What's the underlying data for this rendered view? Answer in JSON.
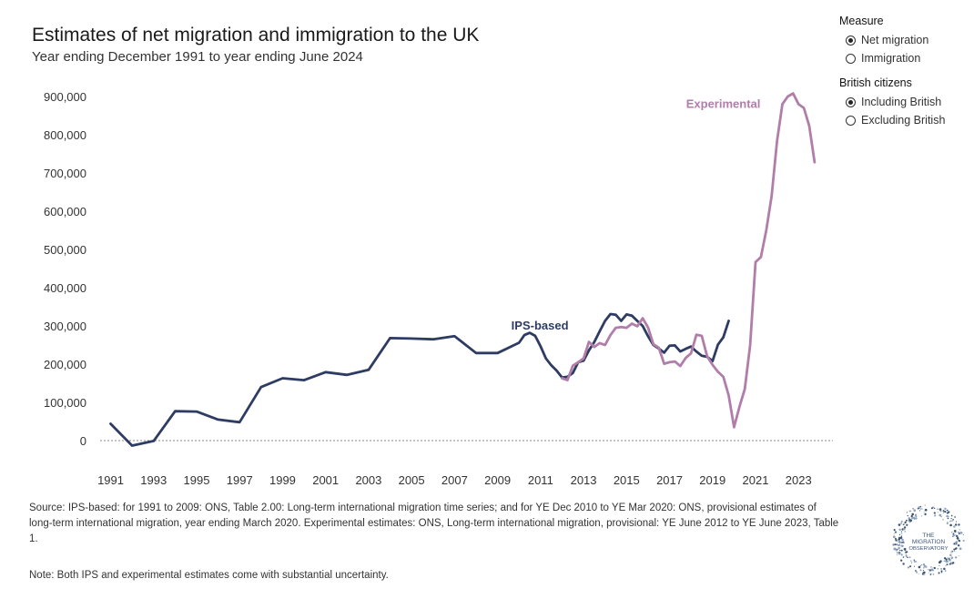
{
  "header": {
    "title": "Estimates of net migration and immigration to the UK",
    "subtitle": "Year ending December 1991 to year ending June 2024"
  },
  "controls": {
    "measure": {
      "title": "Measure",
      "options": [
        {
          "label": "Net migration",
          "selected": true
        },
        {
          "label": "Immigration",
          "selected": false
        }
      ]
    },
    "british": {
      "title": "British citizens",
      "options": [
        {
          "label": "Including British",
          "selected": true
        },
        {
          "label": "Excluding British",
          "selected": false
        }
      ]
    }
  },
  "footer": {
    "source": "Source: IPS-based: for 1991 to 2009: ONS, Table 2.00: Long-term international migration time series; and for YE Dec 2010 to YE Mar 2020: ONS, provisional estimates of long-term international migration, year ending March 2020. Experimental estimates: ONS, Long-term international migration, provisional: YE June 2012 to YE June 2023, Table 1.",
    "note": "Note: Both IPS and experimental estimates come with substantial uncertainty.",
    "logo_text": "THE MIGRATION OBSERVATORY"
  },
  "colors": {
    "ips": "#2e3c63",
    "experimental": "#b07ea9",
    "zero_line": "#888888"
  },
  "chart_data": {
    "type": "line",
    "title": "Estimates of net migration and immigration to the UK",
    "xlabel": "",
    "ylabel": "",
    "xlim": [
      1990.3,
      2024.6
    ],
    "ylim": [
      -20000,
      920000
    ],
    "yticks": [
      0,
      100000,
      200000,
      300000,
      400000,
      500000,
      600000,
      700000,
      800000,
      900000
    ],
    "ytick_labels": [
      "0",
      "100,000",
      "200,000",
      "300,000",
      "400,000",
      "500,000",
      "600,000",
      "700,000",
      "800,000",
      "900,000"
    ],
    "xticks": [
      1991,
      1993,
      1995,
      1997,
      1999,
      2001,
      2003,
      2005,
      2007,
      2009,
      2011,
      2013,
      2015,
      2017,
      2019,
      2021,
      2023
    ],
    "xtick_labels": [
      "1991",
      "1993",
      "1995",
      "1997",
      "1999",
      "2001",
      "2003",
      "2005",
      "2007",
      "2009",
      "2011",
      "2013",
      "2015",
      "2017",
      "2019",
      "2021",
      "2023"
    ],
    "series": [
      {
        "name": "IPS-based",
        "label": "IPS-based",
        "x": [
          1991,
          1992,
          1993,
          1994,
          1995,
          1996,
          1997,
          1998,
          1999,
          2000,
          2001,
          2002,
          2003,
          2004,
          2005,
          2006,
          2007,
          2008,
          2009,
          2010,
          2010.25,
          2010.5,
          2010.75,
          2011,
          2011.25,
          2011.5,
          2011.75,
          2012,
          2012.25,
          2012.5,
          2012.75,
          2013,
          2013.25,
          2013.5,
          2013.75,
          2014,
          2014.25,
          2014.5,
          2014.75,
          2015,
          2015.25,
          2015.5,
          2015.75,
          2016,
          2016.25,
          2016.5,
          2016.75,
          2017,
          2017.25,
          2017.5,
          2017.75,
          2018,
          2018.25,
          2018.5,
          2018.75,
          2019,
          2019.25,
          2019.5,
          2019.75
        ],
        "values": [
          44000,
          -13000,
          -1000,
          77000,
          76000,
          55000,
          48000,
          140000,
          163000,
          158000,
          179000,
          172000,
          185000,
          268000,
          267000,
          265000,
          273000,
          229000,
          229000,
          256000,
          276000,
          282000,
          274000,
          247000,
          215000,
          197000,
          183000,
          165000,
          167000,
          177000,
          205000,
          209000,
          236000,
          258000,
          286000,
          313000,
          331000,
          329000,
          313000,
          330000,
          327000,
          313000,
          300000,
          273000,
          250000,
          241000,
          230000,
          248000,
          249000,
          233000,
          240000,
          246000,
          233000,
          222000,
          219000,
          208000,
          251000,
          270000,
          313000
        ]
      },
      {
        "name": "Experimental",
        "label": "Experimental",
        "x": [
          2012,
          2012.25,
          2012.5,
          2012.75,
          2013,
          2013.25,
          2013.5,
          2013.75,
          2014,
          2014.25,
          2014.5,
          2014.75,
          2015,
          2015.25,
          2015.5,
          2015.75,
          2016,
          2016.25,
          2016.5,
          2016.75,
          2017,
          2017.25,
          2017.5,
          2017.75,
          2018,
          2018.25,
          2018.5,
          2018.75,
          2019,
          2019.25,
          2019.5,
          2019.75,
          2020,
          2020.25,
          2020.5,
          2020.75,
          2021,
          2021.25,
          2021.5,
          2021.75,
          2022,
          2022.25,
          2022.5,
          2022.75,
          2023,
          2023.25,
          2023.5,
          2023.75
        ],
        "values": [
          163000,
          158000,
          196000,
          205000,
          215000,
          258000,
          245000,
          255000,
          250000,
          276000,
          295000,
          297000,
          295000,
          306000,
          299000,
          320000,
          296000,
          252000,
          243000,
          201000,
          205000,
          207000,
          195000,
          216000,
          228000,
          277000,
          274000,
          220000,
          198000,
          180000,
          167000,
          118000,
          35000,
          88000,
          135000,
          250000,
          467000,
          480000,
          550000,
          640000,
          783000,
          880000,
          900000,
          908000,
          880000,
          870000,
          823000,
          728000
        ]
      }
    ],
    "annotations": [
      {
        "text": "IPS-based",
        "x": 2012.3,
        "y": 290000
      },
      {
        "text": "Experimental",
        "x": 2019.5,
        "y": 870000
      }
    ]
  }
}
